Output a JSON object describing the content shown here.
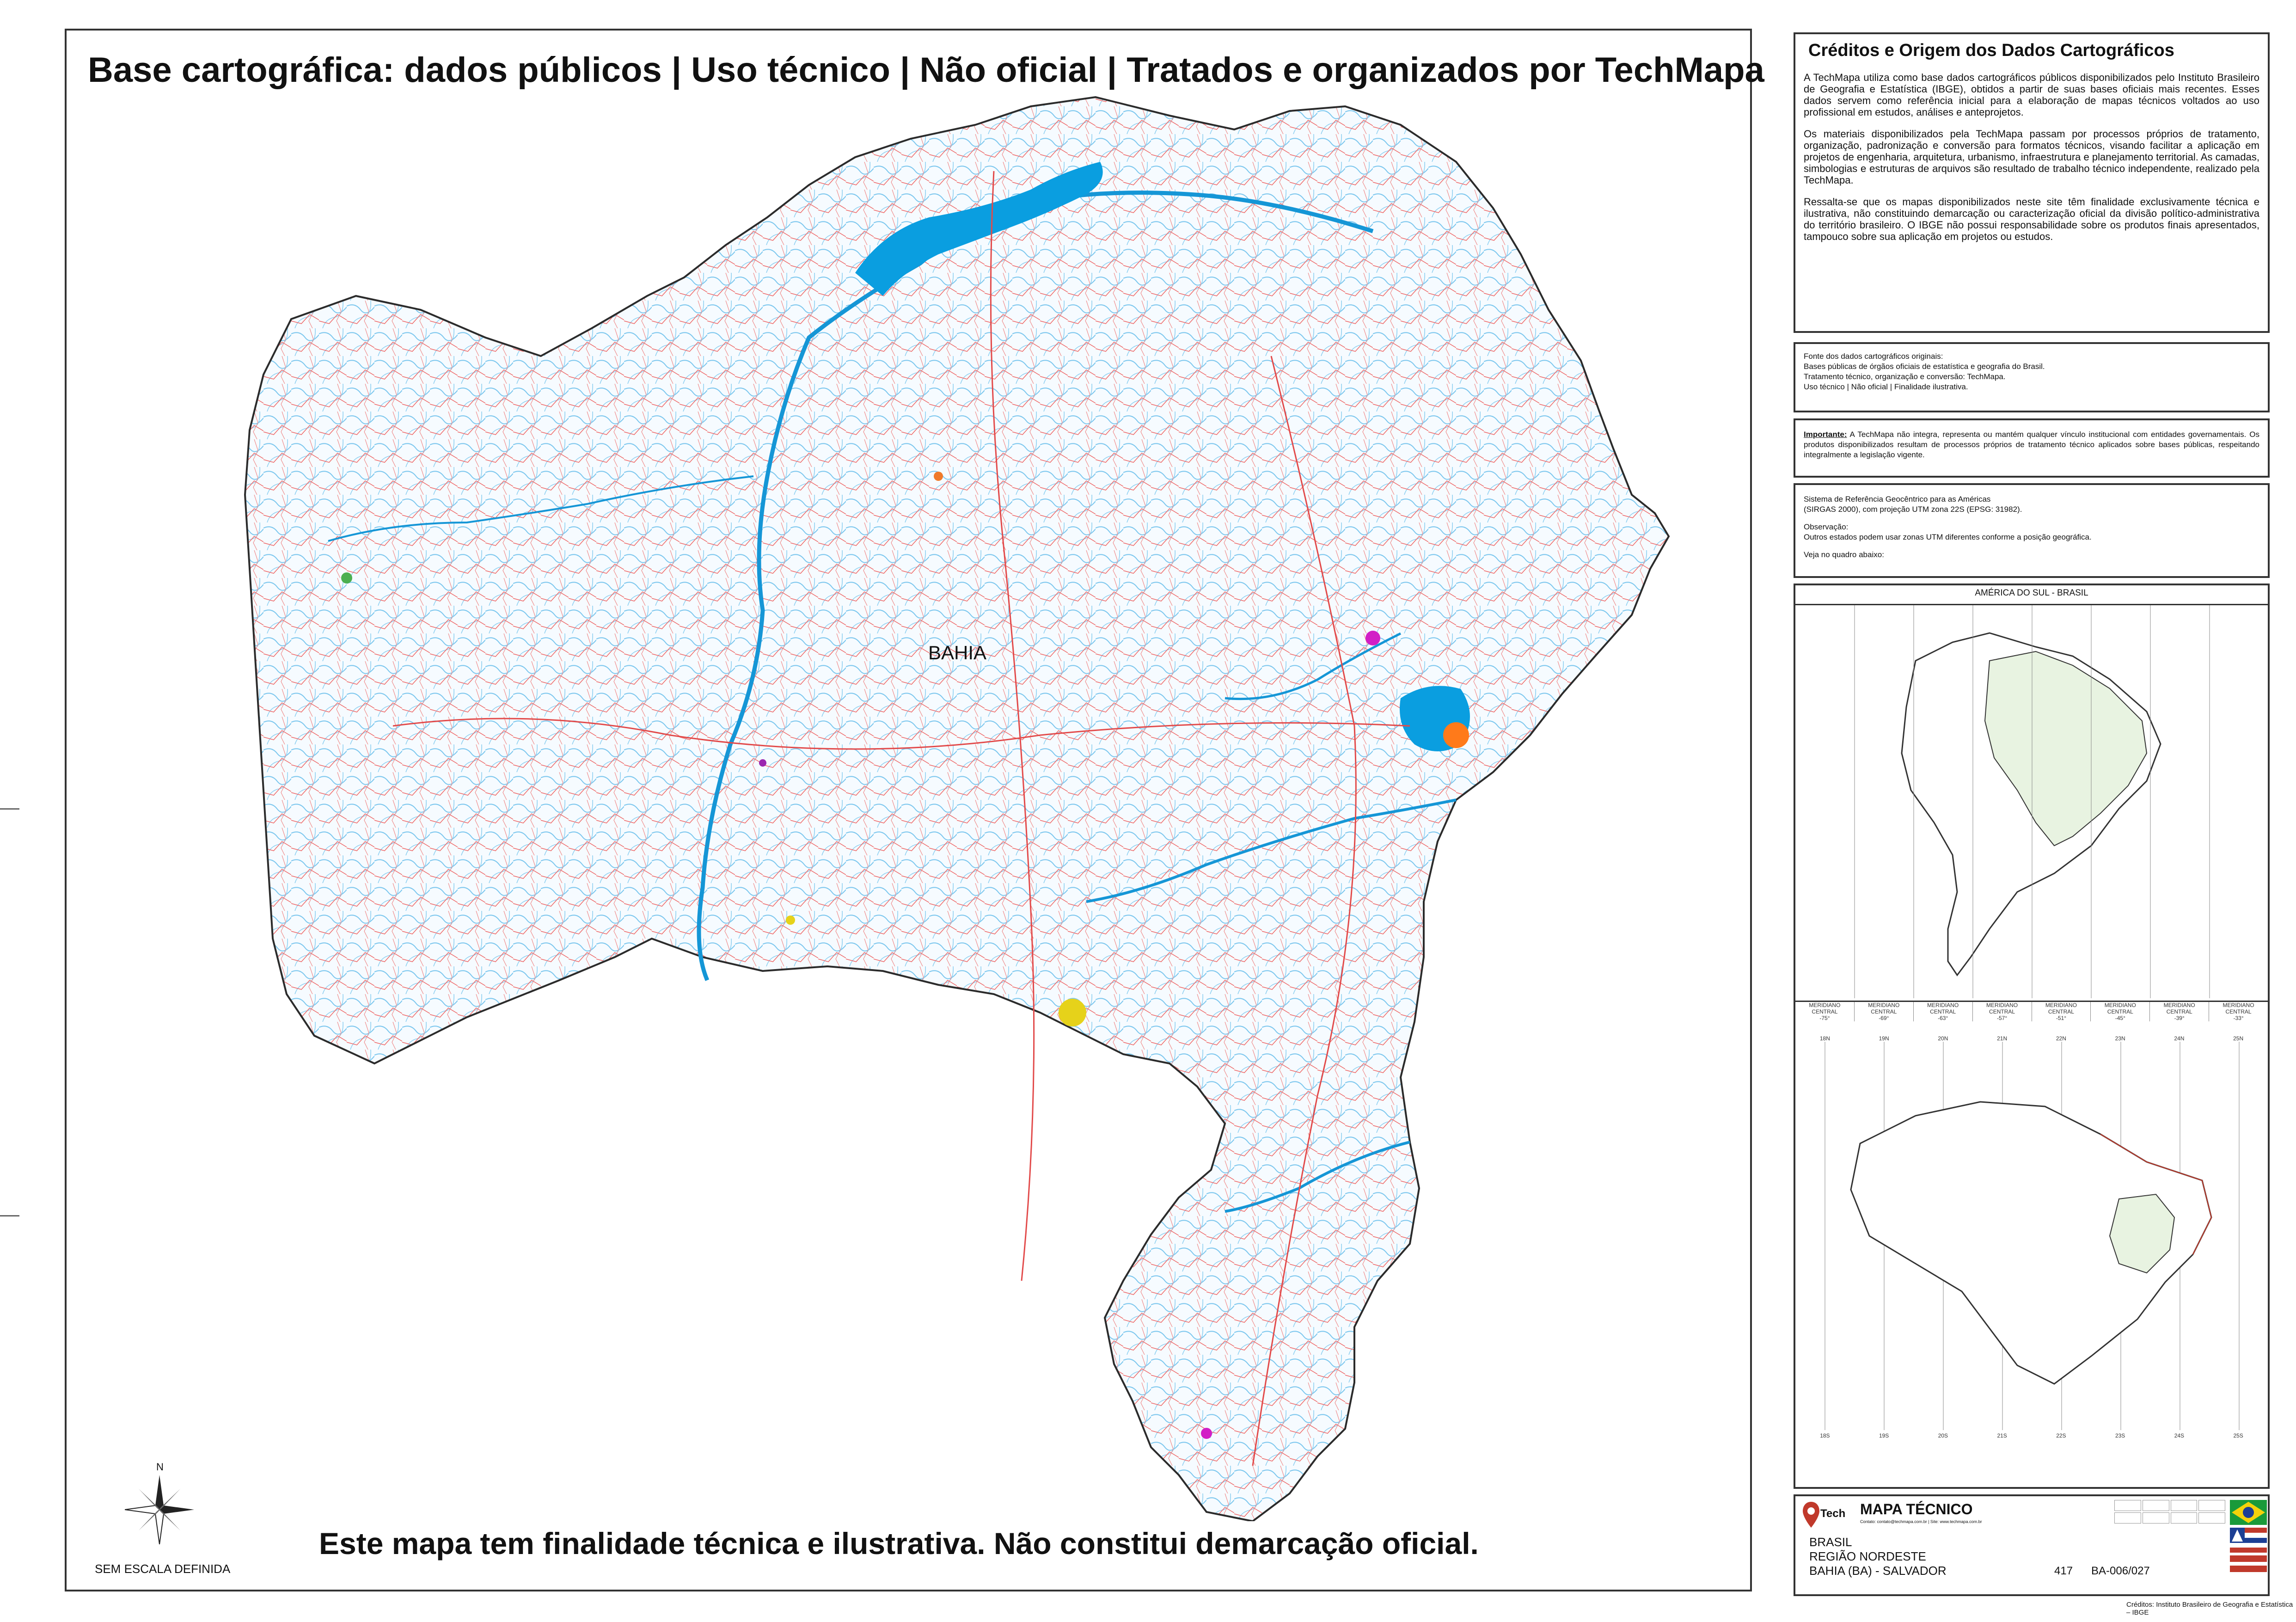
{
  "map": {
    "title": "Base cartográfica: dados públicos | Uso técnico | Não oficial | Tratados e organizados por TechMapa",
    "state_label": "BAHIA",
    "scale_note": "SEM ESCALA DEFINIDA",
    "north_label": "N",
    "disclaimer": "Este mapa tem finalidade técnica e ilustrativa. Não constitui demarcação oficial.",
    "colors": {
      "rivers": "#3aa7e0",
      "roads": "#e24a4a",
      "water_bodies": "#0a9ee0",
      "border": "#2b2b2b"
    }
  },
  "credits": {
    "heading": "Créditos e Origem dos Dados Cartográficos",
    "para1": "A TechMapa utiliza como base dados cartográficos públicos disponibilizados pelo Instituto Brasileiro de Geografia e Estatística (IBGE), obtidos a partir de suas bases oficiais mais recentes. Esses dados servem como referência inicial para a elaboração de mapas técnicos voltados ao uso profissional em estudos, análises e anteprojetos.",
    "para2": "Os materiais disponibilizados pela TechMapa passam por processos próprios de tratamento, organização, padronização e conversão para formatos técnicos, visando facilitar a aplicação em projetos de engenharia, arquitetura, urbanismo, infraestrutura e planejamento territorial. As camadas, simbologias e estruturas de arquivos são resultado de trabalho técnico independente, realizado pela TechMapa.",
    "para3": "Ressalta-se que os mapas disponibilizados neste site têm finalidade exclusivamente técnica e ilustrativa, não constituindo demarcação ou caracterização oficial da divisão político-administrativa do território brasileiro. O IBGE não possui responsabilidade sobre os produtos finais apresentados, tampouco sobre sua aplicação em projetos ou estudos."
  },
  "source": {
    "line1": "Fonte dos dados cartográficos originais:",
    "line2": "Bases públicas de órgãos oficiais de estatística e geografia do Brasil.",
    "line3": "Tratamento técnico, organização e conversão: TechMapa.",
    "line4": "Uso técnico | Não oficial | Finalidade ilustrativa."
  },
  "important": {
    "label": "Importante:",
    "text": "A TechMapa não integra, representa ou mantém qualquer vínculo institucional com entidades governamentais. Os produtos disponibilizados resultam de processos próprios de tratamento técnico aplicados sobre bases públicas, respeitando integralmente a legislação vigente."
  },
  "projection": {
    "line1": "Sistema de Referência Geocêntrico para as Américas",
    "line2": "(SIRGAS 2000), com projeção UTM zona 22S (EPSG: 31982).",
    "line3": "Observação:",
    "line4": "Outros estados podem usar zonas UTM diferentes conforme a posição geográfica.",
    "line5": "Veja no quadro abaixo:"
  },
  "inset": {
    "title": "AMÉRICA DO SUL - BRASIL",
    "meridian_label": "MERIDIANO CENTRAL",
    "meridians": [
      "-75°",
      "-69°",
      "-63°",
      "-57°",
      "-51°",
      "-45°",
      "-39°",
      "-33°"
    ],
    "zones_north": [
      "18N",
      "19N",
      "20N",
      "21N",
      "22N",
      "23N",
      "24N",
      "25N"
    ],
    "zones_south": [
      "18S",
      "19S",
      "20S",
      "21S",
      "22S",
      "23S",
      "24S",
      "25S"
    ]
  },
  "title_block": {
    "logo_word": "Tech",
    "heading": "MAPA TÉCNICO",
    "contact": "Contato: contato@techmapa.com.br | Site: www.techmapa.com.br",
    "country": "BRASIL",
    "region": "REGIÃO NORDESTE",
    "state_city": "BAHIA (BA) - SALVADOR",
    "number": "417",
    "code": "BA-006/027",
    "footer": "Créditos: Instituto Brasileiro de Geografia e Estatística – IBGE"
  }
}
